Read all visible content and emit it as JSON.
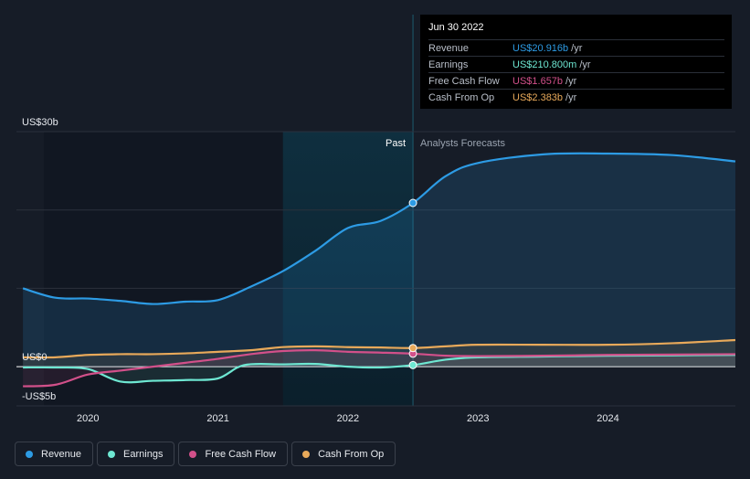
{
  "colors": {
    "revenue": "#2d9be4",
    "earnings": "#6ee7d2",
    "fcf": "#d2508a",
    "cfo": "#e8a95a",
    "grid": "#2b313c",
    "zero": "#ffffff"
  },
  "tooltip": {
    "date": "Jun 30 2022",
    "rows": [
      {
        "label": "Revenue",
        "value": "US$20.916b",
        "unit": "/yr",
        "color": "#2d9be4"
      },
      {
        "label": "Earnings",
        "value": "US$210.800m",
        "unit": "/yr",
        "color": "#6ee7d2"
      },
      {
        "label": "Free Cash Flow",
        "value": "US$1.657b",
        "unit": "/yr",
        "color": "#d2508a"
      },
      {
        "label": "Cash From Op",
        "value": "US$2.383b",
        "unit": "/yr",
        "color": "#e8a95a"
      }
    ]
  },
  "legend": [
    {
      "label": "Revenue",
      "color": "#2d9be4"
    },
    {
      "label": "Earnings",
      "color": "#6ee7d2"
    },
    {
      "label": "Free Cash Flow",
      "color": "#d2508a"
    },
    {
      "label": "Cash From Op",
      "color": "#e8a95a"
    }
  ],
  "chart_data": {
    "type": "line",
    "title": "",
    "xlabel": "",
    "ylabel": "",
    "ylim": [
      -5,
      30
    ],
    "xlim": [
      2019.45,
      2024.98
    ],
    "y_tick_labels": [
      {
        "value": 30,
        "label": "US$30b"
      },
      {
        "value": 0,
        "label": "US$0"
      },
      {
        "value": -5,
        "label": "-US$5b"
      }
    ],
    "gridlines": [
      30,
      20,
      10,
      0
    ],
    "x_ticks": [
      {
        "value": 2020,
        "label": "2020"
      },
      {
        "value": 2021,
        "label": "2021"
      },
      {
        "value": 2022,
        "label": "2022"
      },
      {
        "value": 2023,
        "label": "2023"
      },
      {
        "value": 2024,
        "label": "2024"
      }
    ],
    "past_region": [
      2021.5,
      2022.5
    ],
    "divider_x": 2022.5,
    "past_label": "Past",
    "forecast_label": "Analysts Forecasts",
    "series": [
      {
        "name": "Revenue",
        "key": "revenue",
        "x": [
          2019.5,
          2019.75,
          2020.0,
          2020.25,
          2020.5,
          2020.75,
          2021.0,
          2021.25,
          2021.5,
          2021.75,
          2022.0,
          2022.25,
          2022.5,
          2022.75,
          2023.0,
          2023.5,
          2024.0,
          2024.5,
          2024.98
        ],
        "y": [
          10.0,
          8.8,
          8.7,
          8.4,
          8.0,
          8.3,
          8.5,
          10.2,
          12.2,
          14.8,
          17.7,
          18.6,
          20.9,
          24.3,
          26.0,
          27.1,
          27.2,
          27.0,
          26.2
        ],
        "fill": true
      },
      {
        "name": "Earnings",
        "key": "earnings",
        "x": [
          2019.5,
          2019.75,
          2020.0,
          2020.25,
          2020.5,
          2020.75,
          2021.0,
          2021.2,
          2021.5,
          2021.75,
          2022.0,
          2022.25,
          2022.5,
          2022.75,
          2023.0,
          2023.5,
          2024.0,
          2024.5,
          2024.98
        ],
        "y": [
          -0.1,
          -0.1,
          -0.3,
          -1.9,
          -1.8,
          -1.7,
          -1.5,
          0.2,
          0.3,
          0.35,
          0.0,
          -0.1,
          0.21,
          0.9,
          1.2,
          1.3,
          1.4,
          1.45,
          1.5
        ],
        "fill": false
      },
      {
        "name": "Free Cash Flow",
        "key": "fcf",
        "x": [
          2019.5,
          2019.75,
          2020.0,
          2020.25,
          2020.5,
          2020.75,
          2021.0,
          2021.25,
          2021.5,
          2021.75,
          2022.0,
          2022.25,
          2022.5,
          2022.75,
          2023.0,
          2023.5,
          2024.0,
          2024.5,
          2024.98
        ],
        "y": [
          -2.5,
          -2.3,
          -1.0,
          -0.5,
          0.0,
          0.5,
          1.0,
          1.6,
          2.0,
          2.1,
          1.9,
          1.8,
          1.66,
          1.4,
          1.35,
          1.4,
          1.5,
          1.55,
          1.6
        ],
        "fill": false
      },
      {
        "name": "Cash From Op",
        "key": "cfo",
        "x": [
          2019.5,
          2019.75,
          2020.0,
          2020.25,
          2020.5,
          2020.75,
          2021.0,
          2021.25,
          2021.5,
          2021.75,
          2022.0,
          2022.25,
          2022.5,
          2022.75,
          2023.0,
          2023.5,
          2024.0,
          2024.5,
          2024.98
        ],
        "y": [
          1.2,
          1.2,
          1.5,
          1.6,
          1.6,
          1.7,
          1.9,
          2.1,
          2.5,
          2.6,
          2.5,
          2.45,
          2.38,
          2.6,
          2.8,
          2.8,
          2.8,
          3.0,
          3.4
        ],
        "fill": false
      }
    ]
  }
}
